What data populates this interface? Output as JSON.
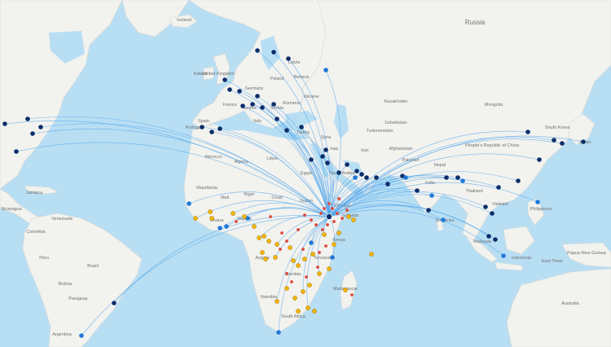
{
  "map": {
    "hub": "Addis Ababa",
    "route_color": "#4aa3ec",
    "colors": {
      "ocean": "#b8def3",
      "land": "#f2f2ef",
      "marker_dark": "#0b2e6b",
      "marker_blue": "#1f78d6",
      "marker_yellow": "#f4b400",
      "marker_red": "#e0473c"
    },
    "labels": [
      {
        "text": "Russia",
        "size": "lg"
      },
      {
        "text": "Latvia"
      },
      {
        "text": "Germany"
      },
      {
        "text": "Poland"
      },
      {
        "text": "Ukraine"
      },
      {
        "text": "Belarus"
      },
      {
        "text": "Romania"
      },
      {
        "text": "Serbia"
      },
      {
        "text": "Italy"
      },
      {
        "text": "France"
      },
      {
        "text": "Spain"
      },
      {
        "text": "Portugal"
      },
      {
        "text": "United Kingdom"
      },
      {
        "text": "Ireland"
      },
      {
        "text": "Austria"
      },
      {
        "text": "Turkey"
      },
      {
        "text": "Syria"
      },
      {
        "text": "Iraq"
      },
      {
        "text": "Iran"
      },
      {
        "text": "Egypt"
      },
      {
        "text": "Libya"
      },
      {
        "text": "Algeria"
      },
      {
        "text": "Morocco"
      },
      {
        "text": "Mauritania"
      },
      {
        "text": "Mali"
      },
      {
        "text": "Niger"
      },
      {
        "text": "Chad"
      },
      {
        "text": "Sudan"
      },
      {
        "text": "Nigeria"
      },
      {
        "text": "Ghana"
      },
      {
        "text": "Saudi Arabia"
      },
      {
        "text": "Ethiopia"
      },
      {
        "text": "Somalia"
      },
      {
        "text": "Kenya"
      },
      {
        "text": "Tanzania"
      },
      {
        "text": "Angola"
      },
      {
        "text": "Zambia"
      },
      {
        "text": "Namibia"
      },
      {
        "text": "South Africa"
      },
      {
        "text": "Madagascar"
      },
      {
        "text": "Kazakhstan"
      },
      {
        "text": "Uzbekistan"
      },
      {
        "text": "Turkmenistan"
      },
      {
        "text": "Afghanistan"
      },
      {
        "text": "Pakistan"
      },
      {
        "text": "India"
      },
      {
        "text": "Nepal"
      },
      {
        "text": "Mongolia"
      },
      {
        "text": "People's Republic of China"
      },
      {
        "text": "South Korea"
      },
      {
        "text": "Japan"
      },
      {
        "text": "Thailand"
      },
      {
        "text": "Vietnam"
      },
      {
        "text": "Malaysia"
      },
      {
        "text": "Indonesia"
      },
      {
        "text": "Sri Lanka"
      },
      {
        "text": "Philippines"
      },
      {
        "text": "Papua New Guinea"
      },
      {
        "text": "East Timor"
      },
      {
        "text": "Australia"
      },
      {
        "text": "Brazil"
      },
      {
        "text": "Peru"
      },
      {
        "text": "Bolivia"
      },
      {
        "text": "Colombia"
      },
      {
        "text": "Venezuela"
      },
      {
        "text": "Paraguay"
      },
      {
        "text": "Argentina"
      },
      {
        "text": "Jamaica"
      },
      {
        "text": "Nicaragua"
      },
      {
        "text": "Iceland"
      }
    ]
  }
}
